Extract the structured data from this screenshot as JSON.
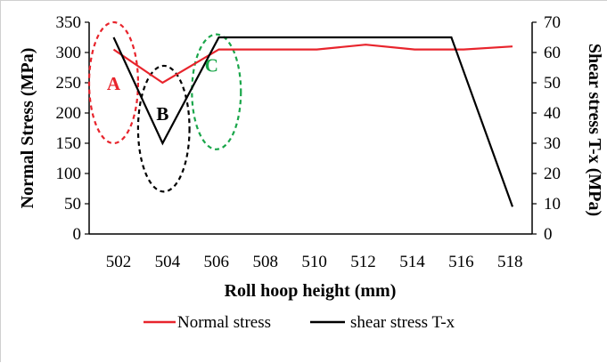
{
  "chart_data": {
    "type": "line",
    "xlabel": "Roll hoop height (mm)",
    "ylabel": "Normal Stress (MPa)",
    "y2label": "Shear stress T-x (MPa)",
    "x_ticks": [
      "502",
      "504",
      "506",
      "508",
      "510",
      "512",
      "514",
      "516",
      "518"
    ],
    "xlim": [
      500.8,
      518.9
    ],
    "ylim": [
      0,
      350
    ],
    "y_ticks": [
      0,
      50,
      100,
      150,
      200,
      250,
      300,
      350
    ],
    "y2lim": [
      0,
      70
    ],
    "y2_ticks": [
      0,
      10,
      20,
      30,
      40,
      50,
      60,
      70
    ],
    "grid": false,
    "legend_position": "bottom",
    "series": [
      {
        "name": "Normal stress",
        "axis": "left",
        "color": "#e8242c",
        "x": [
          501.8,
          503.8,
          506.1,
          510.1,
          512.1,
          514.1,
          516.1,
          518.1
        ],
        "y": [
          305,
          250,
          305,
          305,
          313,
          305,
          305,
          310
        ]
      },
      {
        "name": "shear stress T-x",
        "axis": "right",
        "color": "#000000",
        "x": [
          501.8,
          503.8,
          506.1,
          515.6,
          518.1
        ],
        "y": [
          65,
          30,
          65,
          65,
          9
        ]
      }
    ],
    "annotations": [
      {
        "text": "A",
        "color": "#e8242c",
        "x": 501.8,
        "y_left": 250,
        "ellipse_y_range": [
          150,
          350
        ],
        "ellipse_x_range": [
          500.8,
          502.8
        ],
        "dashed": true
      },
      {
        "text": "B",
        "color": "#000000",
        "x": 503.8,
        "y_left": 200,
        "ellipse_y_range": [
          70,
          278
        ],
        "ellipse_x_range": [
          502.8,
          504.9
        ],
        "dashed": true
      },
      {
        "text": "C",
        "color": "#1aa64a",
        "x": 505.8,
        "y_left": 280,
        "ellipse_y_range": [
          140,
          330
        ],
        "ellipse_x_range": [
          505.0,
          507.0
        ],
        "dashed": true
      }
    ]
  }
}
